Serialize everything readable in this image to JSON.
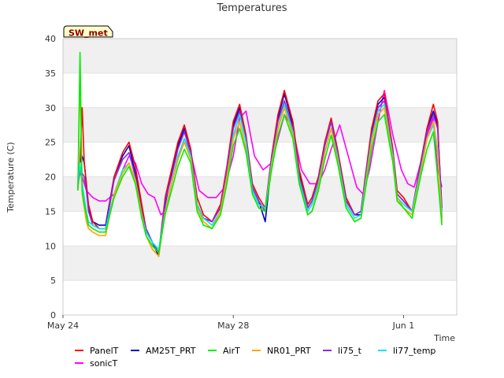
{
  "chart_data": {
    "type": "line",
    "title": "Temperatures",
    "xlabel": "Time",
    "ylabel": "Temperature (C)",
    "badge": "SW_met",
    "ylim": [
      0,
      40
    ],
    "yticks": [
      0,
      5,
      10,
      15,
      20,
      25,
      30,
      35,
      40
    ],
    "xlim": [
      0,
      9.25
    ],
    "xticks": [
      {
        "value": 0,
        "label": "May 24"
      },
      {
        "value": 4,
        "label": "May 28"
      },
      {
        "value": 8,
        "label": "Jun 1"
      }
    ],
    "grid": true,
    "legend_position": "bottom",
    "series": [
      {
        "name": "PanelT",
        "color": "#ff0000",
        "x": [
          0.35,
          0.4,
          0.45,
          0.5,
          0.55,
          0.6,
          0.7,
          0.85,
          1.0,
          1.2,
          1.4,
          1.55,
          1.7,
          1.85,
          1.95,
          2.1,
          2.25,
          2.4,
          2.55,
          2.7,
          2.85,
          3.0,
          3.15,
          3.3,
          3.5,
          3.7,
          3.85,
          4.0,
          4.15,
          4.3,
          4.45,
          4.6,
          4.75,
          4.9,
          5.05,
          5.2,
          5.4,
          5.55,
          5.75,
          5.85,
          6.0,
          6.15,
          6.3,
          6.45,
          6.65,
          6.85,
          7.0,
          7.1,
          7.25,
          7.4,
          7.55,
          7.75,
          7.85,
          8.0,
          8.2,
          8.4,
          8.55,
          8.7,
          8.8,
          8.9
        ],
        "values": [
          18.5,
          22,
          30,
          22,
          19,
          16,
          13.5,
          12.5,
          12.5,
          20,
          23.5,
          25,
          21.5,
          16,
          12.5,
          10.5,
          9,
          17,
          21,
          25,
          27.5,
          24,
          17,
          14.5,
          13.5,
          16,
          21.5,
          28,
          30.5,
          26,
          19,
          17,
          15.5,
          23,
          29,
          32.5,
          28,
          21,
          16,
          17,
          20,
          25,
          28.5,
          24,
          17,
          14.5,
          15,
          20,
          27,
          31,
          32,
          24,
          18,
          17,
          15,
          22,
          27,
          30.5,
          28,
          14
        ]
      },
      {
        "name": "AM25T_PRT",
        "color": "#0000cc",
        "x": [
          0.35,
          0.4,
          0.45,
          0.5,
          0.55,
          0.6,
          0.7,
          0.85,
          1.0,
          1.2,
          1.4,
          1.55,
          1.7,
          1.85,
          1.95,
          2.1,
          2.25,
          2.4,
          2.55,
          2.7,
          2.85,
          3.0,
          3.15,
          3.3,
          3.5,
          3.7,
          3.85,
          4.0,
          4.15,
          4.3,
          4.45,
          4.6,
          4.75,
          4.9,
          5.05,
          5.2,
          5.4,
          5.55,
          5.75,
          5.85,
          6.0,
          6.15,
          6.3,
          6.45,
          6.65,
          6.85,
          7.0,
          7.1,
          7.25,
          7.4,
          7.55,
          7.75,
          7.85,
          8.0,
          8.2,
          8.4,
          8.55,
          8.7,
          8.8,
          8.9
        ],
        "values": [
          18.5,
          22,
          23,
          22,
          19,
          15.5,
          13.5,
          13,
          13,
          20,
          23,
          24.5,
          20.5,
          15.5,
          12.5,
          10.5,
          8.5,
          16,
          20.5,
          24.5,
          27,
          24,
          16,
          14,
          13.5,
          15.5,
          21,
          27.5,
          30,
          25.5,
          18.5,
          16.5,
          13.5,
          22,
          28.5,
          32,
          27.5,
          20.5,
          15.5,
          16.5,
          19.5,
          24.5,
          28,
          23.5,
          16.5,
          14.5,
          14.5,
          19.5,
          26.5,
          30.5,
          31.5,
          23.5,
          17.5,
          16.5,
          15,
          21.5,
          27,
          29.5,
          27.5,
          15.5
        ]
      },
      {
        "name": "AirT",
        "color": "#00ee00",
        "x": [
          0.35,
          0.4,
          0.45,
          0.5,
          0.55,
          0.6,
          0.7,
          0.85,
          1.0,
          1.2,
          1.4,
          1.55,
          1.7,
          1.85,
          1.95,
          2.1,
          2.25,
          2.4,
          2.55,
          2.7,
          2.85,
          3.0,
          3.15,
          3.3,
          3.5,
          3.7,
          3.85,
          4.0,
          4.15,
          4.3,
          4.45,
          4.6,
          4.75,
          4.9,
          5.05,
          5.2,
          5.4,
          5.55,
          5.75,
          5.85,
          6.0,
          6.15,
          6.3,
          6.45,
          6.65,
          6.85,
          7.0,
          7.1,
          7.25,
          7.4,
          7.55,
          7.75,
          7.85,
          8.0,
          8.2,
          8.4,
          8.55,
          8.7,
          8.8,
          8.9
        ],
        "values": [
          18,
          38,
          18,
          16,
          14.5,
          13,
          12.5,
          12,
          12,
          17,
          20,
          21.5,
          19,
          14,
          11.5,
          10,
          9,
          14.5,
          18,
          21.5,
          24,
          22,
          15,
          13,
          12.5,
          14.5,
          19,
          24.5,
          27,
          23.5,
          17.5,
          15.5,
          15,
          21,
          26,
          29,
          25.5,
          19,
          14.5,
          15,
          18,
          22.5,
          26,
          22,
          15.5,
          13.5,
          14,
          18,
          24,
          28,
          29,
          22,
          16.5,
          15.5,
          14,
          20,
          24,
          26.5,
          20,
          13
        ]
      },
      {
        "name": "NR01_PRT",
        "color": "#ffa500",
        "x": [
          0.35,
          0.4,
          0.45,
          0.5,
          0.55,
          0.6,
          0.7,
          0.85,
          1.0,
          1.2,
          1.4,
          1.55,
          1.7,
          1.85,
          1.95,
          2.1,
          2.25,
          2.4,
          2.55,
          2.7,
          2.85,
          3.0,
          3.15,
          3.3,
          3.5,
          3.7,
          3.85,
          4.0,
          4.15,
          4.3,
          4.45,
          4.6,
          4.75,
          4.9,
          5.05,
          5.2,
          5.4,
          5.55,
          5.75,
          5.85,
          6.0,
          6.15,
          6.3,
          6.45,
          6.65,
          6.85,
          7.0,
          7.1,
          7.25,
          7.4,
          7.55,
          7.75,
          7.85,
          8.0,
          8.2,
          8.4,
          8.55,
          8.7,
          8.8,
          8.9
        ],
        "values": [
          18,
          35.5,
          17.5,
          15.5,
          13.5,
          12.5,
          12,
          11.5,
          11.5,
          17.5,
          20.5,
          22,
          19.5,
          14.5,
          11.5,
          9.5,
          8.5,
          15,
          19,
          22.5,
          25,
          22.5,
          15.5,
          13.5,
          12.5,
          15,
          20,
          25.5,
          28,
          24,
          17.5,
          15.5,
          15,
          21.5,
          27,
          30,
          26,
          19,
          14.5,
          15,
          18.5,
          23.5,
          27,
          22.5,
          15.5,
          13.5,
          14,
          18.5,
          25,
          29,
          30,
          22.5,
          17,
          15.5,
          14.5,
          20.5,
          25.5,
          28,
          24,
          13.5
        ]
      },
      {
        "name": "li75_t",
        "color": "#8a2be2",
        "x": [
          0.35,
          0.4,
          0.45,
          0.5,
          0.55,
          0.6,
          0.7,
          0.85,
          1.0,
          1.2,
          1.4,
          1.55,
          1.7,
          1.85,
          1.95,
          2.1,
          2.25,
          2.4,
          2.55,
          2.7,
          2.85,
          3.0,
          3.15,
          3.3,
          3.5,
          3.7,
          3.85,
          4.0,
          4.15,
          4.3,
          4.45,
          4.6,
          4.75,
          4.9,
          5.05,
          5.2,
          5.4,
          5.55,
          5.75,
          5.85,
          6.0,
          6.15,
          6.3,
          6.45,
          6.65,
          6.85,
          7.0,
          7.1,
          7.25,
          7.4,
          7.55,
          7.75,
          7.85,
          8.0,
          8.2,
          8.4,
          8.55,
          8.7,
          8.8,
          8.9
        ],
        "values": [
          18.5,
          21,
          20.5,
          20,
          18,
          15,
          13,
          12.5,
          12.5,
          19.5,
          22.5,
          23.5,
          20,
          15,
          12.5,
          10.5,
          9,
          16.5,
          20,
          24,
          26.5,
          23.5,
          16,
          14,
          13.5,
          15.5,
          21,
          27,
          29.5,
          25.5,
          18.5,
          16.5,
          15,
          22.5,
          28,
          31,
          27,
          20,
          15.5,
          16.5,
          19.5,
          24.5,
          28,
          23.5,
          16.5,
          14.5,
          15,
          19.5,
          26,
          30,
          31,
          23.5,
          17.5,
          16.5,
          15,
          21.5,
          26.5,
          29,
          27,
          15
        ]
      },
      {
        "name": "li77_temp",
        "color": "#00e5ee",
        "x": [
          0.35,
          0.4,
          0.45,
          0.5,
          0.55,
          0.6,
          0.7,
          0.85,
          1.0,
          1.2,
          1.4,
          1.55,
          1.7,
          1.85,
          1.95,
          2.1,
          2.25,
          2.4,
          2.55,
          2.7,
          2.85,
          3.0,
          3.15,
          3.3,
          3.5,
          3.7,
          3.85,
          4.0,
          4.15,
          4.3,
          4.45,
          4.6,
          4.75,
          4.9,
          5.05,
          5.2,
          5.4,
          5.55,
          5.75,
          5.85,
          6.0,
          6.15,
          6.3,
          6.45,
          6.65,
          6.85,
          7.0,
          7.1,
          7.25,
          7.4,
          7.55,
          7.75,
          7.85,
          8.0,
          8.2,
          8.4,
          8.55,
          8.7,
          8.8,
          8.9
        ],
        "values": [
          18.5,
          22,
          19,
          17,
          15,
          13.5,
          13,
          12.5,
          12.5,
          17.5,
          21,
          22,
          19.5,
          14.5,
          12,
          10.5,
          9.5,
          15,
          19,
          23,
          25.5,
          23,
          16,
          14,
          13,
          15,
          20,
          26,
          29,
          25,
          18,
          16,
          15.5,
          22,
          27,
          30.5,
          26.5,
          19.5,
          15,
          16,
          19,
          23.5,
          27,
          23,
          16,
          14,
          14.5,
          19,
          25.5,
          29.5,
          30.5,
          23,
          17,
          16,
          15,
          21,
          25.5,
          27.5,
          23.5,
          14.5
        ]
      },
      {
        "name": "sonicT",
        "color": "#ff00ff",
        "x": [
          0.35,
          0.4,
          0.45,
          0.55,
          0.7,
          0.85,
          1.0,
          1.2,
          1.4,
          1.55,
          1.7,
          1.85,
          2.0,
          2.15,
          2.3,
          2.4,
          2.55,
          2.7,
          2.85,
          3.0,
          3.2,
          3.4,
          3.6,
          3.8,
          4.0,
          4.15,
          4.3,
          4.5,
          4.7,
          4.9,
          5.05,
          5.2,
          5.4,
          5.6,
          5.8,
          6.0,
          6.15,
          6.3,
          6.5,
          6.7,
          6.9,
          7.05,
          7.2,
          7.4,
          7.55,
          7.75,
          7.95,
          8.1,
          8.25,
          8.4,
          8.55,
          8.7,
          8.8,
          8.9
        ],
        "values": [
          19,
          20.5,
          20,
          18,
          17,
          16.5,
          16.5,
          17.5,
          21,
          23,
          22,
          19,
          17.5,
          17,
          14.5,
          15,
          19,
          22.5,
          25.5,
          23.5,
          18,
          17,
          17,
          18.5,
          23,
          28.5,
          29.5,
          23,
          21,
          22,
          25.5,
          29,
          27,
          21,
          19,
          19,
          21,
          24,
          27.5,
          23,
          18.5,
          17.5,
          21,
          28,
          32.5,
          26,
          21,
          19,
          18.5,
          22,
          26,
          28.5,
          21,
          18.5
        ]
      }
    ]
  }
}
